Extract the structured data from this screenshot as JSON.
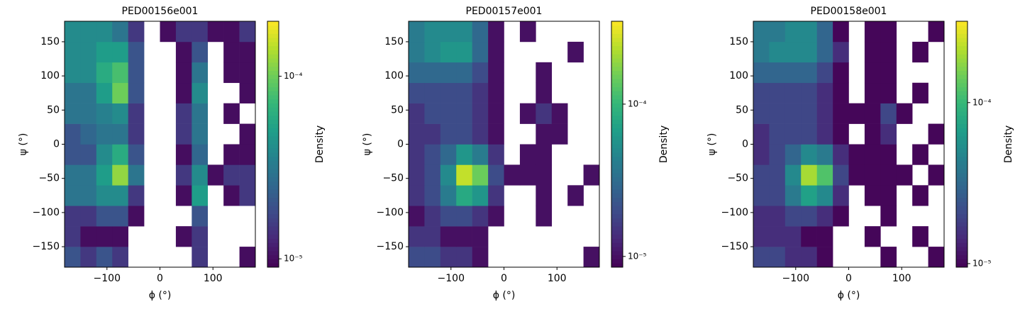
{
  "chart_data": [
    {
      "type": "heatmap",
      "title": "PED00156e001",
      "xlabel": "ϕ (°)",
      "ylabel": "ψ (°)",
      "colorbar_label": "Density",
      "colormap": "viridis",
      "log_color": true,
      "xlim": [
        -180,
        180
      ],
      "ylim": [
        -180,
        180
      ],
      "xticks": [
        {
          "value": -100,
          "label": "−100"
        },
        0,
        100
      ],
      "yticks": [
        {
          "value": -150,
          "label": "−150"
        },
        {
          "value": -100,
          "label": "−100"
        },
        {
          "value": -50,
          "label": "−50"
        },
        0,
        50,
        100,
        150
      ],
      "xbins": [
        -180,
        -150,
        -120,
        -90,
        -60,
        -30,
        0,
        30,
        60,
        90,
        120,
        150,
        180
      ],
      "ybins": [
        -180,
        -150,
        -120,
        -90,
        -60,
        -30,
        0,
        30,
        60,
        90,
        120,
        150,
        180
      ],
      "clim": [
        9e-06,
        0.0002
      ],
      "cticks": [
        {
          "value": 1e-05,
          "label": "10⁻⁵"
        },
        {
          "value": 0.0001,
          "label": "10⁻⁴"
        }
      ],
      "z": [
        [
          2e-05,
          1.5e-05,
          2e-05,
          1.5e-05,
          null,
          null,
          null,
          null,
          1.5e-05,
          null,
          null,
          1e-05
        ],
        [
          1.5e-05,
          1e-05,
          1e-05,
          1e-05,
          null,
          null,
          null,
          1e-05,
          1.5e-05,
          null,
          null,
          null
        ],
        [
          1.5e-05,
          1.5e-05,
          2e-05,
          2e-05,
          1e-05,
          null,
          null,
          null,
          2e-05,
          null,
          null,
          null
        ],
        [
          3e-05,
          3e-05,
          4e-05,
          4e-05,
          1.5e-05,
          null,
          null,
          1e-05,
          5e-05,
          null,
          1e-05,
          1.5e-05
        ],
        [
          3e-05,
          3e-05,
          5e-05,
          0.00012,
          3e-05,
          null,
          null,
          1.5e-05,
          4e-05,
          1e-05,
          1.5e-05,
          1.5e-05
        ],
        [
          2e-05,
          2e-05,
          4e-05,
          6e-05,
          2e-05,
          null,
          null,
          1e-05,
          2.5e-05,
          null,
          1e-05,
          1e-05
        ],
        [
          2e-05,
          2.5e-05,
          3e-05,
          3e-05,
          1.5e-05,
          null,
          null,
          1.5e-05,
          3e-05,
          null,
          null,
          1e-05
        ],
        [
          3e-05,
          3e-05,
          3.5e-05,
          4e-05,
          1.5e-05,
          null,
          null,
          1.5e-05,
          3e-05,
          null,
          1e-05,
          null
        ],
        [
          3e-05,
          3e-05,
          5e-05,
          0.0001,
          2e-05,
          null,
          null,
          1e-05,
          4e-05,
          null,
          null,
          1e-05
        ],
        [
          4e-05,
          4e-05,
          6e-05,
          8e-05,
          2e-05,
          null,
          null,
          1e-05,
          3e-05,
          null,
          1e-05,
          1e-05
        ],
        [
          4e-05,
          4e-05,
          5e-05,
          5e-05,
          2e-05,
          null,
          null,
          1e-05,
          2e-05,
          null,
          1e-05,
          1e-05
        ],
        [
          4e-05,
          4e-05,
          4e-05,
          3e-05,
          1.5e-05,
          null,
          1e-05,
          1.5e-05,
          1.5e-05,
          1e-05,
          1e-05,
          1.5e-05
        ]
      ]
    },
    {
      "type": "heatmap",
      "title": "PED00157e001",
      "xlabel": "ϕ (°)",
      "ylabel": "ψ (°)",
      "colorbar_label": "Density",
      "colormap": "viridis",
      "log_color": true,
      "xlim": [
        -180,
        180
      ],
      "ylim": [
        -180,
        180
      ],
      "xticks": [
        {
          "value": -100,
          "label": "−100"
        },
        0,
        100
      ],
      "yticks": [
        {
          "value": -150,
          "label": "−150"
        },
        {
          "value": -100,
          "label": "−100"
        },
        {
          "value": -50,
          "label": "−50"
        },
        0,
        50,
        100,
        150
      ],
      "xbins": [
        -180,
        -150,
        -120,
        -90,
        -60,
        -30,
        0,
        30,
        60,
        90,
        120,
        150,
        180
      ],
      "ybins": [
        -180,
        -150,
        -120,
        -90,
        -60,
        -30,
        0,
        30,
        60,
        90,
        120,
        150,
        180
      ],
      "clim": [
        8.5e-06,
        0.00035
      ],
      "cticks": [
        {
          "value": 1e-05,
          "label": "10⁻⁵"
        },
        {
          "value": 0.0001,
          "label": "10⁻⁴"
        }
      ],
      "z": [
        [
          2e-05,
          2e-05,
          1.5e-05,
          1.5e-05,
          1e-05,
          null,
          null,
          null,
          null,
          null,
          null,
          1e-05
        ],
        [
          1.5e-05,
          1.5e-05,
          1e-05,
          1e-05,
          1e-05,
          null,
          null,
          null,
          null,
          null,
          null,
          null
        ],
        [
          1e-05,
          1.5e-05,
          2e-05,
          2e-05,
          1.5e-05,
          1e-05,
          null,
          null,
          1e-05,
          null,
          null,
          null
        ],
        [
          1.5e-05,
          2e-05,
          4e-05,
          8e-05,
          6e-05,
          1.5e-05,
          null,
          null,
          1e-05,
          null,
          1e-05,
          null
        ],
        [
          1.5e-05,
          2e-05,
          5e-05,
          0.00025,
          0.00015,
          2e-05,
          1e-05,
          1e-05,
          1e-05,
          null,
          null,
          1e-05
        ],
        [
          1.5e-05,
          2e-05,
          3e-05,
          6e-05,
          4e-05,
          1.5e-05,
          null,
          1e-05,
          1e-05,
          null,
          null,
          null
        ],
        [
          1.5e-05,
          1.5e-05,
          2e-05,
          2e-05,
          1.5e-05,
          1e-05,
          null,
          null,
          1e-05,
          1e-05,
          null,
          null
        ],
        [
          1.5e-05,
          2e-05,
          2e-05,
          2e-05,
          1.5e-05,
          1e-05,
          null,
          1e-05,
          1.5e-05,
          1e-05,
          null,
          null
        ],
        [
          2e-05,
          2e-05,
          2e-05,
          2e-05,
          1.5e-05,
          1e-05,
          null,
          null,
          1e-05,
          null,
          null,
          null
        ],
        [
          3e-05,
          3e-05,
          3e-05,
          3e-05,
          2e-05,
          1e-05,
          null,
          null,
          1e-05,
          null,
          null,
          null
        ],
        [
          4e-05,
          5e-05,
          6e-05,
          6e-05,
          3e-05,
          1e-05,
          null,
          null,
          null,
          null,
          1e-05,
          null
        ],
        [
          4e-05,
          5e-05,
          5e-05,
          5e-05,
          3e-05,
          1e-05,
          null,
          1e-05,
          null,
          null,
          null,
          null
        ]
      ]
    },
    {
      "type": "heatmap",
      "title": "PED00158e001",
      "xlabel": "ϕ (°)",
      "ylabel": "ψ (°)",
      "colorbar_label": "Density",
      "colormap": "viridis",
      "log_color": true,
      "xlim": [
        -180,
        180
      ],
      "ylim": [
        -180,
        180
      ],
      "xticks": [
        {
          "value": -100,
          "label": "−100"
        },
        0,
        100
      ],
      "yticks": [
        {
          "value": -150,
          "label": "−150"
        },
        {
          "value": -100,
          "label": "−100"
        },
        {
          "value": -50,
          "label": "−50"
        },
        0,
        50,
        100,
        150
      ],
      "xbins": [
        -180,
        -150,
        -120,
        -90,
        -60,
        -30,
        0,
        30,
        60,
        90,
        120,
        150,
        180
      ],
      "ybins": [
        -180,
        -150,
        -120,
        -90,
        -60,
        -30,
        0,
        30,
        60,
        90,
        120,
        150,
        180
      ],
      "clim": [
        9.5e-06,
        0.00032
      ],
      "cticks": [
        {
          "value": 1e-05,
          "label": "10⁻⁵"
        },
        {
          "value": 0.0001,
          "label": "10⁻⁴"
        }
      ],
      "z": [
        [
          2e-05,
          2e-05,
          1.5e-05,
          1.5e-05,
          1e-05,
          null,
          null,
          null,
          1e-05,
          null,
          null,
          1e-05
        ],
        [
          1.5e-05,
          1.5e-05,
          1.5e-05,
          1e-05,
          1e-05,
          null,
          null,
          1e-05,
          null,
          null,
          1e-05,
          null
        ],
        [
          1.5e-05,
          1.5e-05,
          2e-05,
          2e-05,
          1.5e-05,
          1e-05,
          null,
          null,
          1e-05,
          null,
          null,
          null
        ],
        [
          2e-05,
          2e-05,
          4e-05,
          7e-05,
          5e-05,
          1.5e-05,
          null,
          1e-05,
          1e-05,
          null,
          1e-05,
          null
        ],
        [
          2e-05,
          2e-05,
          5e-05,
          0.0002,
          0.00012,
          2e-05,
          1e-05,
          1e-05,
          1e-05,
          1e-05,
          null,
          1e-05
        ],
        [
          1.5e-05,
          2e-05,
          3e-05,
          5e-05,
          4e-05,
          1.5e-05,
          1e-05,
          1e-05,
          1e-05,
          null,
          1e-05,
          null
        ],
        [
          1.5e-05,
          2e-05,
          2e-05,
          2e-05,
          1.5e-05,
          1e-05,
          null,
          1e-05,
          1.5e-05,
          null,
          null,
          1e-05
        ],
        [
          2e-05,
          2e-05,
          2e-05,
          2e-05,
          1.5e-05,
          1e-05,
          1e-05,
          1e-05,
          2e-05,
          1e-05,
          null,
          null
        ],
        [
          2e-05,
          2e-05,
          2e-05,
          2e-05,
          1.5e-05,
          1e-05,
          null,
          1e-05,
          1e-05,
          null,
          1e-05,
          null
        ],
        [
          3e-05,
          3e-05,
          3e-05,
          3e-05,
          2e-05,
          1e-05,
          null,
          1e-05,
          1e-05,
          null,
          null,
          null
        ],
        [
          4e-05,
          5e-05,
          5e-05,
          5e-05,
          3e-05,
          1.5e-05,
          null,
          1e-05,
          1e-05,
          null,
          1e-05,
          null
        ],
        [
          4e-05,
          4e-05,
          5e-05,
          5e-05,
          3e-05,
          1e-05,
          null,
          1e-05,
          1e-05,
          null,
          null,
          1e-05
        ]
      ]
    }
  ]
}
